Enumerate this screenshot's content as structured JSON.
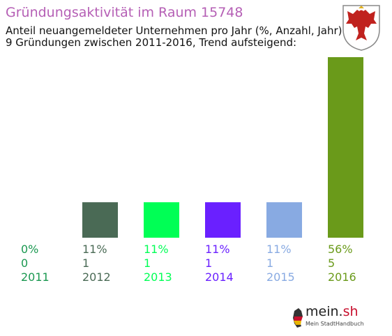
{
  "chart_data": {
    "type": "bar",
    "title": "Gründungsaktivität im Raum 15748",
    "subtitle_lines": [
      "Anteil neuangemeldeter Unternehmen pro Jahr (%, Anzahl, Jahr)",
      "9 Gründungen zwischen 2011-2016, Trend aufsteigend:"
    ],
    "categories": [
      "2011",
      "2012",
      "2013",
      "2014",
      "2015",
      "2016"
    ],
    "values": [
      0,
      11,
      11,
      11,
      11,
      56
    ],
    "counts": [
      0,
      1,
      1,
      1,
      1,
      5
    ],
    "percent_labels": [
      "0%",
      "11%",
      "11%",
      "11%",
      "11%",
      "56%"
    ],
    "count_labels": [
      "0",
      "1",
      "1",
      "1",
      "1",
      "5"
    ],
    "colors": [
      "#1a9850",
      "#4a6a55",
      "#00ff55",
      "#6a20ff",
      "#88aae2",
      "#6a9a1a"
    ],
    "ylim": [
      0,
      56
    ],
    "grid": false,
    "legend": "none"
  },
  "logo": {
    "name": "mein.",
    "suffix": "sh",
    "tagline": "Mein StadtHandbuch",
    "crest_icon": "brandenburg-eagle-crest-icon",
    "logo_icon": "germany-map-icon"
  }
}
